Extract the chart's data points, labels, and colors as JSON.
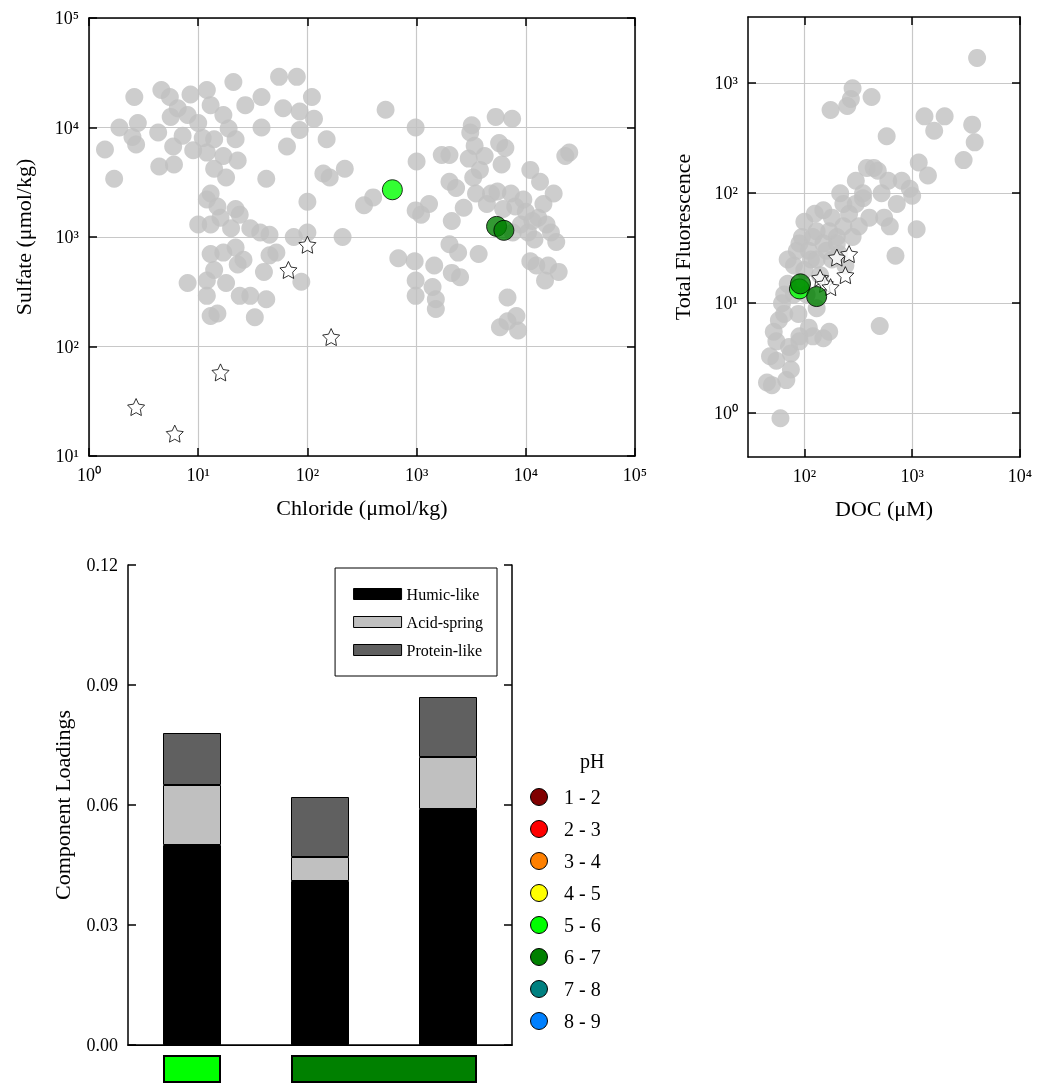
{
  "chart_data": [
    {
      "type": "scatter",
      "xlabel": "Chloride (μmol/kg)",
      "ylabel": "Sulfate (μmol/kg)",
      "log": "xy",
      "grid": true,
      "xlim": [
        1,
        100000
      ],
      "ylim": [
        10,
        100000
      ],
      "xticks": [
        {
          "value": 1,
          "label": "10⁰"
        },
        {
          "value": 10,
          "label": "10¹"
        },
        {
          "value": 100,
          "label": "10²"
        },
        {
          "value": 1000,
          "label": "10³"
        },
        {
          "value": 10000,
          "label": "10⁴"
        },
        {
          "value": 100000,
          "label": "10⁵"
        }
      ],
      "yticks": [
        {
          "value": 10,
          "label": "10¹"
        },
        {
          "value": 100,
          "label": "10²"
        },
        {
          "value": 1000,
          "label": "10³"
        },
        {
          "value": 10000,
          "label": "10⁴"
        },
        {
          "value": 100000,
          "label": "10⁵"
        }
      ],
      "series": [
        {
          "color": "#c0c0c0",
          "marker": "circle",
          "x": [
            1.4,
            1.7,
            1.9,
            2.5,
            2.7,
            2.8,
            2.6,
            4.3,
            4.4,
            4.6,
            5.5,
            5.6,
            5.9,
            6,
            6.5,
            7.2,
            8,
            8.5,
            9,
            10,
            11,
            12,
            12,
            13,
            14,
            14,
            13,
            15,
            12,
            13,
            10,
            16,
            17,
            17,
            18,
            19,
            20,
            21,
            22,
            22,
            23,
            24,
            13,
            14,
            12,
            8,
            12,
            13,
            15,
            17,
            18,
            22,
            23,
            26,
            24,
            30,
            27,
            30,
            33,
            37,
            38,
            38,
            40,
            42,
            45,
            42,
            45,
            52,
            55,
            60,
            65,
            75,
            80,
            85,
            85,
            88,
            100,
            100,
            110,
            115,
            140,
            150,
            160,
            210,
            220,
            330,
            400,
            520,
            680,
            980,
            1000,
            980,
            960,
            980,
            980,
            1100,
            1300,
            1400,
            1500,
            1500,
            1450,
            1700,
            2000,
            2000,
            2000,
            2100,
            2100,
            2300,
            2400,
            2500,
            2700,
            3000,
            3100,
            3200,
            3300,
            3400,
            3500,
            3700,
            3800,
            4200,
            4400,
            4800,
            5300,
            5500,
            5700,
            5800,
            6000,
            6200,
            6500,
            6800,
            6800,
            7300,
            7500,
            7600,
            8000,
            8500,
            8200,
            9000,
            10000,
            10500,
            11000,
            11000,
            12000,
            12500,
            13000,
            13500,
            14500,
            15500,
            15000,
            16000,
            17000,
            18000,
            19000,
            20000,
            23000,
            25000,
            11500,
            9500
          ],
          "values": [
            6300,
            3400,
            10000,
            8200,
            7000,
            11000,
            19000,
            9000,
            4400,
            22000,
            19000,
            12500,
            6700,
            4600,
            15000,
            8400,
            13000,
            20000,
            6200,
            11000,
            8000,
            22000,
            5900,
            16000,
            7800,
            4200,
            2500,
            1900,
            2200,
            1300,
            1300,
            1500,
            13000,
            5500,
            3500,
            9800,
            1200,
            26000,
            7800,
            1800,
            5000,
            1600,
            700,
            500,
            400,
            380,
            290,
            190,
            200,
            720,
            380,
            800,
            560,
            620,
            290,
            290,
            16000,
            1200,
            185,
            1100,
            19000,
            10000,
            480,
            3400,
            1050,
            270,
            680,
            720,
            29000,
            15000,
            6700,
            1000,
            29000,
            14000,
            9500,
            390,
            2100,
            1100,
            19000,
            12000,
            3800,
            7800,
            3500,
            1000,
            4200,
            1950,
            2300,
            14500,
            640,
            10000,
            4900,
            1750,
            600,
            400,
            290,
            1600,
            2000,
            350,
            270,
            220,
            550,
            5600,
            3200,
            5600,
            860,
            1400,
            470,
            2800,
            720,
            430,
            1850,
            5200,
            9000,
            10500,
            3500,
            6800,
            2500,
            700,
            4100,
            5500,
            2000,
            2500,
            12500,
            2600,
            7200,
            150,
            4600,
            1800,
            6500,
            280,
            170,
            2500,
            12000,
            1100,
            1900,
            140,
            190,
            1300,
            1700,
            1100,
            600,
            4100,
            950,
            550,
            1500,
            3200,
            2000,
            1300,
            400,
            550,
            1100,
            2500,
            900,
            480,
            5500,
            5900,
            1400,
            2200
          ]
        },
        {
          "color": "#ffffff",
          "marker": "star",
          "x": [
            2.7,
            6.1,
            16,
            67,
            100,
            165
          ],
          "values": [
            28,
            16,
            58,
            500,
            850,
            122
          ]
        },
        {
          "color": "#00ff00",
          "marker": "circle",
          "x": [
            600
          ],
          "values": [
            2700
          ]
        },
        {
          "color": "#008000",
          "marker": "circle",
          "x": [
            5400,
            6300
          ],
          "values": [
            1250,
            1150
          ]
        }
      ]
    },
    {
      "type": "scatter",
      "xlabel": "DOC (μM)",
      "ylabel": "Total Fluorescence",
      "log": "xy",
      "grid": true,
      "xlim": [
        30,
        10000
      ],
      "ylim": [
        0.4,
        4000
      ],
      "xticks": [
        {
          "value": 100,
          "label": "10²"
        },
        {
          "value": 1000,
          "label": "10³"
        },
        {
          "value": 10000,
          "label": "10⁴"
        }
      ],
      "yticks": [
        {
          "value": 1,
          "label": "10⁰"
        },
        {
          "value": 10,
          "label": "10¹"
        },
        {
          "value": 100,
          "label": "10²"
        },
        {
          "value": 1000,
          "label": "10³"
        }
      ],
      "series": [
        {
          "color": "#c0c0c0",
          "marker": "circle",
          "x": [
            45,
            50,
            48,
            55,
            52,
            60,
            58,
            62,
            65,
            70,
            72,
            75,
            75,
            80,
            85,
            88,
            90,
            95,
            100,
            105,
            110,
            115,
            120,
            125,
            130,
            140,
            150,
            160,
            175,
            180,
            200,
            215,
            230,
            250,
            270,
            280,
            300,
            320,
            350,
            380,
            400,
            420,
            440,
            480,
            500,
            520,
            550,
            580,
            600,
            620,
            700,
            720,
            800,
            950,
            1000,
            1100,
            1150,
            1300,
            1400,
            1600,
            2000,
            3000,
            3600,
            3800,
            4000,
            70,
            90,
            110,
            130,
            170,
            200,
            230,
            260,
            300,
            65,
            80,
            100,
            120,
            150,
            180,
            210,
            240,
            280,
            350,
            55,
            68,
            90,
            150,
            170,
            130
          ],
          "values": [
            1.9,
            1.8,
            3.3,
            3,
            5.5,
            0.9,
            7,
            10,
            12,
            15,
            4,
            3.5,
            2.5,
            22,
            30,
            8,
            5,
            40,
            55,
            12,
            6,
            25,
            5,
            65,
            45,
            18,
            70,
            30,
            570,
            60,
            40,
            100,
            80,
            620,
            720,
            900,
            130,
            50,
            90,
            170,
            60,
            750,
            170,
            160,
            6.2,
            100,
            60,
            330,
            130,
            50,
            27,
            80,
            130,
            110,
            95,
            47,
            190,
            500,
            145,
            370,
            500,
            200,
            420,
            290,
            1700,
            25,
            35,
            30,
            25,
            45,
            35,
            50,
            65,
            80,
            8,
            12,
            20,
            40,
            35,
            25,
            28,
            22,
            40,
            100,
            4.5,
            2,
            4.5,
            4.8,
            5.5,
            9
          ]
        },
        {
          "color": "#ffffff",
          "marker": "star",
          "x": [
            140,
            155,
            175,
            200,
            240,
            260
          ],
          "values": [
            17,
            15,
            14,
            26,
            18,
            28
          ]
        },
        {
          "color": "#00ff00",
          "marker": "circle",
          "x": [
            90
          ],
          "values": [
            13.5
          ]
        },
        {
          "color": "#008000",
          "marker": "circle",
          "x": [
            92,
            130
          ],
          "values": [
            15,
            11.5
          ]
        }
      ]
    },
    {
      "type": "bar",
      "ylabel": "Component Loadings",
      "stacked": true,
      "legend": "top right",
      "ylim": [
        0,
        0.12
      ],
      "yticks": [
        {
          "value": 0,
          "label": "0.00"
        },
        0.03,
        0.06,
        0.09,
        0.12
      ],
      "categories": [
        null,
        null,
        null
      ],
      "colors": [
        "#00ff00",
        "#008000",
        "#008000"
      ],
      "series": [
        {
          "name": "Humic-like",
          "color": "#000000",
          "values": [
            0.05,
            0.041,
            0.059
          ]
        },
        {
          "name": "Acid-spring",
          "color": "#c0c0c0",
          "values": [
            0.015,
            0.006,
            0.013
          ]
        },
        {
          "name": "Protein-like",
          "color": "#606060",
          "values": [
            0.013,
            0.015,
            0.015
          ]
        }
      ]
    },
    {
      "type": "other",
      "legend_title": "pH",
      "categories": [
        "1 - 2",
        "2 - 3",
        "3 - 4",
        "4 - 5",
        "5 - 6",
        "6 - 7",
        "7 - 8",
        "8 - 9"
      ],
      "colors": [
        "#800000",
        "#ff0000",
        "#ff8000",
        "#ffff00",
        "#00ff00",
        "#008000",
        "#008080",
        "#0080ff"
      ]
    }
  ]
}
